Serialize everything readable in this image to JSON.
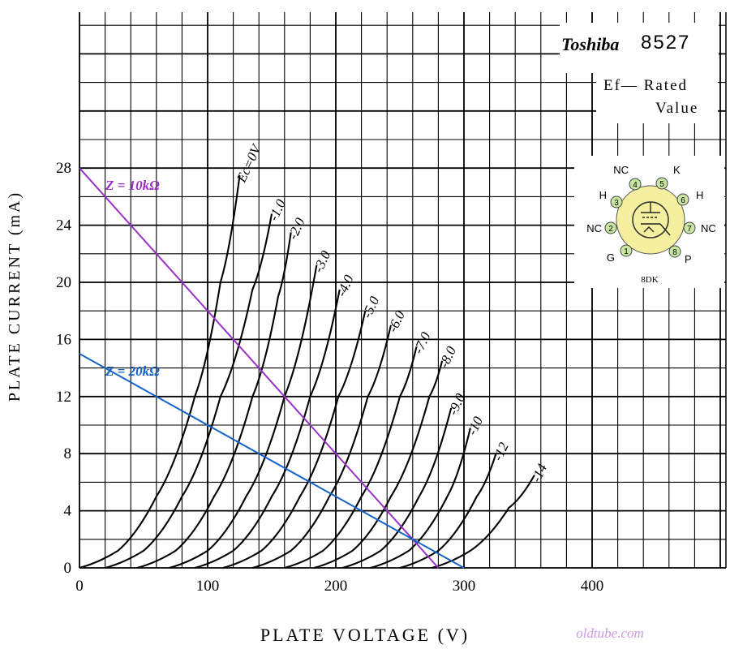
{
  "chart_data": {
    "type": "line",
    "title": "8527",
    "brand": "Toshiba",
    "note_line1": "Ef— Rated",
    "note_line2": "Value",
    "xlabel": "PLATE  VOLTAGE  (V)",
    "ylabel": "PLATE  CURRENT  (mA)",
    "xlim": [
      0,
      500
    ],
    "ylim": [
      0,
      28
    ],
    "x_ticks": [
      0,
      100,
      200,
      300,
      400
    ],
    "y_ticks": [
      0,
      4,
      8,
      12,
      16,
      20,
      24,
      28
    ],
    "grid": true,
    "watermark": "oldtube.com",
    "series": [
      {
        "name": "Ec=0V",
        "x": [
          0,
          30,
          60,
          90,
          110,
          125
        ],
        "y": [
          0,
          1.2,
          5,
          12,
          20,
          27.5
        ]
      },
      {
        "name": "-1.0",
        "x": [
          20,
          50,
          80,
          110,
          135,
          150
        ],
        "y": [
          0,
          1.2,
          5,
          12,
          19.5,
          24.8
        ]
      },
      {
        "name": "-2.0",
        "x": [
          45,
          75,
          105,
          135,
          155,
          165
        ],
        "y": [
          0,
          1.2,
          5,
          12,
          19,
          23.5
        ]
      },
      {
        "name": "-3.0",
        "x": [
          70,
          100,
          130,
          160,
          185
        ],
        "y": [
          0,
          1.2,
          5,
          12,
          21.2
        ]
      },
      {
        "name": "-4.0",
        "x": [
          90,
          120,
          150,
          180,
          203
        ],
        "y": [
          0,
          1.2,
          5,
          12,
          19.5
        ]
      },
      {
        "name": "-5.0",
        "x": [
          112,
          142,
          172,
          202,
          223
        ],
        "y": [
          0,
          1.2,
          5,
          12,
          18
        ]
      },
      {
        "name": "-6.0",
        "x": [
          135,
          165,
          195,
          225,
          243
        ],
        "y": [
          0,
          1.2,
          5,
          12,
          17
        ]
      },
      {
        "name": "-7.0",
        "x": [
          160,
          190,
          220,
          250,
          263
        ],
        "y": [
          0,
          1.2,
          5,
          12,
          15.5
        ]
      },
      {
        "name": "-8.0",
        "x": [
          183,
          213,
          243,
          273,
          283
        ],
        "y": [
          0,
          1.2,
          5,
          12,
          14.5
        ]
      },
      {
        "name": "-9.0",
        "x": [
          205,
          235,
          265,
          290
        ],
        "y": [
          0,
          1.2,
          5,
          11.2
        ]
      },
      {
        "name": "-10",
        "x": [
          227,
          257,
          287,
          305
        ],
        "y": [
          0,
          1.2,
          5,
          9.8
        ]
      },
      {
        "name": "-12",
        "x": [
          250,
          280,
          310,
          325
        ],
        "y": [
          0,
          1.2,
          5,
          8
        ]
      },
      {
        "name": "-14",
        "x": [
          275,
          305,
          335,
          355
        ],
        "y": [
          0,
          1.2,
          4.2,
          6.5
        ]
      }
    ],
    "load_lines": [
      {
        "name": "Z = 10kΩ",
        "x": [
          0,
          280
        ],
        "y": [
          28,
          0
        ],
        "color": "#9b30c8"
      },
      {
        "name": "Z = 20kΩ",
        "x": [
          0,
          300
        ],
        "y": [
          15,
          0
        ],
        "color": "#1462c8"
      }
    ],
    "curve_labels": [
      "Ec=0V",
      "-1.0",
      "-2.0",
      "-3.0",
      "-4.0",
      "-5.0",
      "-6.0",
      "-7.0",
      "-8.0",
      "-9.0",
      "-10",
      "-12",
      "-14"
    ]
  },
  "pinout": {
    "base": "8DK",
    "circle_color": "#f5f0a0",
    "pin_color": "#c8e6a0",
    "pins": [
      {
        "num": "1",
        "label": "G"
      },
      {
        "num": "2",
        "label": "NC"
      },
      {
        "num": "3",
        "label": "H"
      },
      {
        "num": "4",
        "label": "NC"
      },
      {
        "num": "5",
        "label": "K"
      },
      {
        "num": "6",
        "label": "H"
      },
      {
        "num": "7",
        "label": "NC"
      },
      {
        "num": "8",
        "label": "P"
      }
    ]
  }
}
